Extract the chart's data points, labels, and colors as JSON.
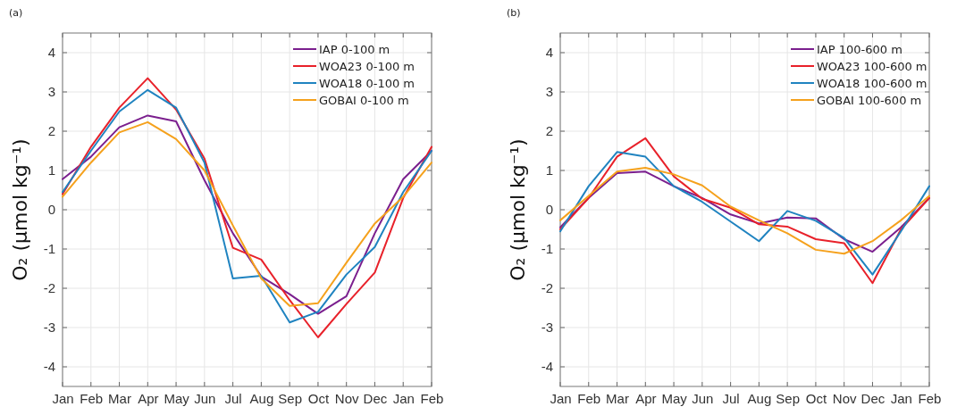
{
  "chart_data": [
    {
      "type": "line",
      "title": "(a)",
      "ylabel": "O₂ (μmol kg⁻¹)",
      "categories": [
        "Jan",
        "Feb",
        "Mar",
        "Apr",
        "May",
        "Jun",
        "Jul",
        "Aug",
        "Sep",
        "Oct",
        "Nov",
        "Dec",
        "Jan",
        "Feb"
      ],
      "ylim": [
        -4.5,
        4.5
      ],
      "yticks": [
        -4,
        -3,
        -2,
        -1,
        0,
        1,
        2,
        3,
        4
      ],
      "grid": true,
      "legend": "top right",
      "series": [
        {
          "name": "IAP 0-100 m",
          "color": "#7b1f8e",
          "values": [
            0.78,
            1.35,
            2.1,
            2.4,
            2.25,
            0.75,
            -0.6,
            -1.7,
            -2.15,
            -2.65,
            -2.2,
            -0.6,
            0.78,
            1.5
          ]
        },
        {
          "name": "WOA23 0-100 m",
          "color": "#e8212a",
          "values": [
            0.4,
            1.6,
            2.6,
            3.35,
            2.55,
            1.3,
            -0.97,
            -1.27,
            -2.3,
            -3.25,
            -2.4,
            -1.6,
            0.3,
            1.6
          ]
        },
        {
          "name": "WOA18 0-100 m",
          "color": "#1f83c0",
          "values": [
            0.45,
            1.5,
            2.5,
            3.05,
            2.6,
            1.2,
            -1.75,
            -1.68,
            -2.87,
            -2.6,
            -1.65,
            -0.95,
            0.45,
            1.5
          ]
        },
        {
          "name": "GOBAI 0-100 m",
          "color": "#f5a11c",
          "values": [
            0.33,
            1.2,
            1.97,
            2.23,
            1.8,
            1.0,
            -0.4,
            -1.75,
            -2.45,
            -2.38,
            -1.35,
            -0.35,
            0.33,
            1.2
          ]
        }
      ]
    },
    {
      "type": "line",
      "title": "(b)",
      "ylabel": "O₂ (μmol kg⁻¹)",
      "categories": [
        "Jan",
        "Feb",
        "Mar",
        "Apr",
        "May",
        "Jun",
        "Jul",
        "Aug",
        "Sep",
        "Oct",
        "Nov",
        "Dec",
        "Jan",
        "Feb"
      ],
      "ylim": [
        -4.5,
        4.5
      ],
      "yticks": [
        -4,
        -3,
        -2,
        -1,
        0,
        1,
        2,
        3,
        4
      ],
      "grid": true,
      "legend": "top right",
      "series": [
        {
          "name": "IAP 100-600 m",
          "color": "#7b1f8e",
          "values": [
            -0.45,
            0.3,
            0.93,
            0.97,
            0.6,
            0.3,
            -0.12,
            -0.35,
            -0.2,
            -0.22,
            -0.75,
            -1.07,
            -0.45,
            0.3
          ]
        },
        {
          "name": "WOA23 100-600 m",
          "color": "#e8212a",
          "values": [
            -0.5,
            0.3,
            1.35,
            1.82,
            0.85,
            0.28,
            0.05,
            -0.37,
            -0.43,
            -0.75,
            -0.85,
            -1.87,
            -0.5,
            0.3
          ]
        },
        {
          "name": "WOA18 100-600 m",
          "color": "#1f83c0",
          "values": [
            -0.55,
            0.6,
            1.47,
            1.35,
            0.6,
            0.2,
            -0.3,
            -0.8,
            -0.03,
            -0.28,
            -0.72,
            -1.65,
            -0.55,
            0.6
          ]
        },
        {
          "name": "GOBAI 100-600 m",
          "color": "#f5a11c",
          "values": [
            -0.27,
            0.35,
            0.97,
            1.07,
            0.9,
            0.62,
            0.08,
            -0.27,
            -0.6,
            -1.02,
            -1.12,
            -0.8,
            -0.27,
            0.35
          ]
        }
      ]
    }
  ]
}
